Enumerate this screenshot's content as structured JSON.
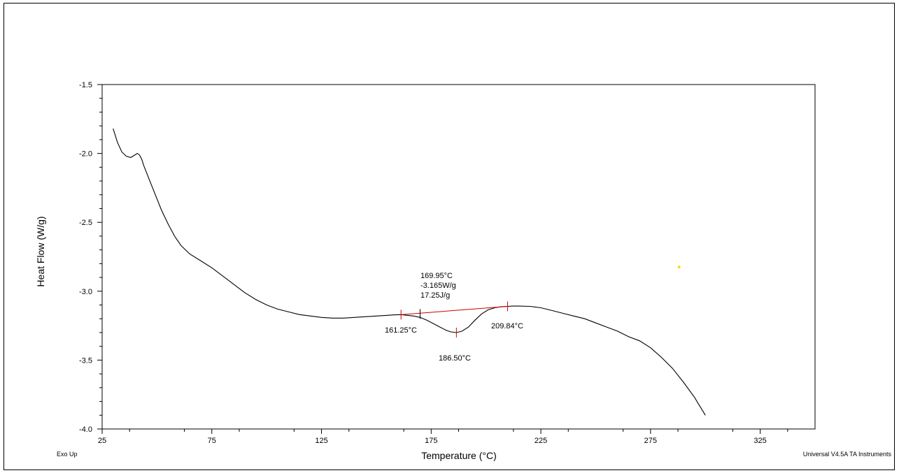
{
  "chart_data": {
    "type": "line",
    "xlabel": "Temperature (°C)",
    "ylabel": "Heat Flow (W/g)",
    "xlim": [
      25,
      350
    ],
    "ylim": [
      -4.0,
      -1.5
    ],
    "x_ticks": [
      25,
      75,
      125,
      175,
      225,
      275,
      325
    ],
    "x_tick_labels": [
      "25",
      "75",
      "125",
      "175",
      "225",
      "275",
      "325"
    ],
    "y_ticks": [
      -1.5,
      -2.0,
      -2.5,
      -3.0,
      -3.5,
      -4.0
    ],
    "y_tick_labels": [
      "-1.5",
      "-2.0",
      "-2.5",
      "-3.0",
      "-3.5",
      "-4.0"
    ],
    "grid": false,
    "series": [
      {
        "color": "#000000",
        "x": [
          30,
          32,
          34,
          36,
          38,
          40,
          41,
          42,
          43,
          44,
          46,
          48,
          50,
          52,
          55,
          58,
          61,
          65,
          70,
          75,
          80,
          85,
          90,
          95,
          100,
          105,
          110,
          115,
          120,
          125,
          130,
          135,
          140,
          145,
          150,
          155,
          158,
          161.25,
          164,
          167,
          170,
          173,
          176,
          179,
          182,
          184,
          186.5,
          189,
          192,
          195,
          198,
          201,
          204,
          207,
          209.84,
          212,
          215,
          220,
          225,
          230,
          235,
          240,
          245,
          250,
          255,
          260,
          265,
          270,
          275,
          280,
          285,
          290,
          295,
          300
        ],
        "y": [
          -1.82,
          -1.92,
          -1.99,
          -2.02,
          -2.03,
          -2.01,
          -2.0,
          -2.01,
          -2.04,
          -2.09,
          -2.17,
          -2.25,
          -2.33,
          -2.41,
          -2.51,
          -2.6,
          -2.67,
          -2.73,
          -2.78,
          -2.83,
          -2.89,
          -2.95,
          -3.01,
          -3.06,
          -3.1,
          -3.13,
          -3.15,
          -3.17,
          -3.18,
          -3.19,
          -3.195,
          -3.195,
          -3.19,
          -3.185,
          -3.18,
          -3.175,
          -3.172,
          -3.17,
          -3.175,
          -3.18,
          -3.19,
          -3.21,
          -3.235,
          -3.26,
          -3.285,
          -3.295,
          -3.3,
          -3.29,
          -3.26,
          -3.21,
          -3.165,
          -3.135,
          -3.12,
          -3.112,
          -3.11,
          -3.108,
          -3.108,
          -3.11,
          -3.12,
          -3.14,
          -3.16,
          -3.18,
          -3.2,
          -3.23,
          -3.26,
          -3.29,
          -3.33,
          -3.36,
          -3.41,
          -3.48,
          -3.56,
          -3.66,
          -3.77,
          -3.9
        ]
      }
    ],
    "baseline": {
      "color": "#cc0000",
      "x": [
        161.25,
        209.84
      ],
      "y": [
        -3.17,
        -3.11
      ]
    },
    "markers": [
      {
        "x": 161.25,
        "y": -3.17,
        "color": "#cc0000"
      },
      {
        "x": 169.95,
        "y": -3.165,
        "color": "#000000"
      },
      {
        "x": 186.5,
        "y": -3.3,
        "color": "#cc0000"
      },
      {
        "x": 209.84,
        "y": -3.11,
        "color": "#cc0000"
      }
    ],
    "stray_point": {
      "x": 288,
      "y": -2.825,
      "color": "#ffd700"
    },
    "annotations": {
      "onset_temp": "169.95°C",
      "onset_heatflow": "-3.165W/g",
      "enthalpy": "17.25J/g",
      "start_temp": "161.25°C",
      "peak_temp": "186.50°C",
      "end_temp": "209.84°C"
    }
  },
  "footer": {
    "left": "Exo Up",
    "right": "Universal V4.5A TA Instruments"
  }
}
